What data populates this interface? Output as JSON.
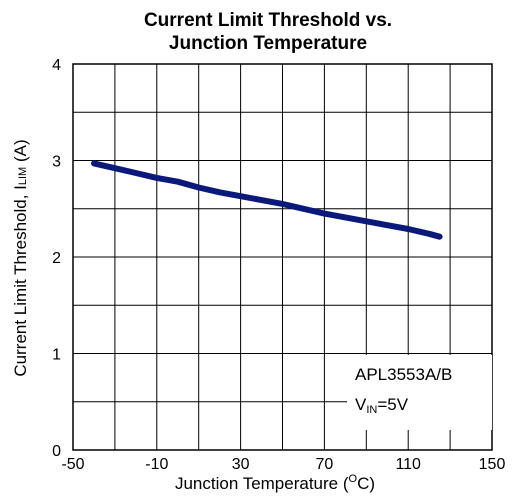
{
  "chart_data": {
    "type": "line",
    "title_line1": "Current Limit Threshold vs.",
    "title_line2": "Junction Temperature",
    "xlabel_main": "Junction Temperature (",
    "xlabel_sup": "O",
    "xlabel_end": "C)",
    "ylabel_main": "Current Limit Threshold, I",
    "ylabel_sub": "LIM",
    "ylabel_end": " (A)",
    "xlim": [
      -50,
      150
    ],
    "ylim": [
      0,
      4
    ],
    "xticks": [
      -50,
      -10,
      30,
      70,
      110,
      150
    ],
    "xtick_labels": [
      "-50",
      "-10",
      "30",
      "70",
      "110",
      "150"
    ],
    "yticks": [
      0,
      1,
      2,
      3,
      4
    ],
    "ytick_labels": [
      "0",
      "1",
      "2",
      "3",
      "4"
    ],
    "grid": true,
    "series": [
      {
        "color": "#0b1a7a",
        "x": [
          -40,
          -30,
          -20,
          -10,
          0,
          10,
          20,
          30,
          40,
          50,
          60,
          70,
          80,
          90,
          100,
          110,
          120,
          125
        ],
        "y": [
          2.97,
          2.92,
          2.87,
          2.82,
          2.78,
          2.72,
          2.67,
          2.63,
          2.59,
          2.55,
          2.5,
          2.45,
          2.41,
          2.37,
          2.33,
          2.29,
          2.24,
          2.21
        ]
      }
    ],
    "annotation": {
      "line1": "APL3553A/B",
      "line2_main": "V",
      "line2_sub": "IN",
      "line2_end": "=5V"
    }
  }
}
